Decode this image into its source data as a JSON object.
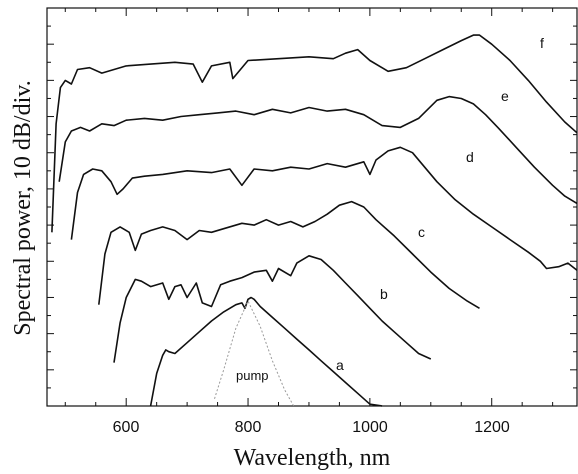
{
  "chart_data": {
    "type": "line",
    "title": "",
    "xlabel": "Wavelength, nm",
    "ylabel": "Spectral power, 10 dB/div.",
    "xlim": [
      470,
      1340
    ],
    "ylim": [
      0,
      11
    ],
    "x_ticks": [
      "600",
      "800",
      "1000",
      "1200"
    ],
    "grid": false,
    "series": [
      {
        "name": "a",
        "x": [
          640,
          650,
          660,
          665,
          670,
          680,
          700,
          720,
          740,
          760,
          780,
          790,
          795,
          800,
          805,
          810,
          820,
          840,
          860,
          880,
          900,
          920,
          940,
          960,
          980,
          1000,
          1020
        ],
        "y": [
          0,
          0.9,
          1.4,
          1.55,
          1.5,
          1.45,
          1.75,
          2.05,
          2.35,
          2.6,
          2.8,
          2.85,
          2.7,
          2.95,
          3.0,
          2.95,
          2.75,
          2.45,
          2.15,
          1.85,
          1.55,
          1.25,
          0.95,
          0.65,
          0.35,
          0.05,
          -0.3
        ]
      },
      {
        "name": "b",
        "x": [
          580,
          590,
          600,
          615,
          625,
          640,
          660,
          670,
          680,
          690,
          700,
          715,
          725,
          740,
          755,
          770,
          790,
          810,
          830,
          840,
          850,
          870,
          880,
          900,
          920,
          940,
          960,
          980,
          1000,
          1020,
          1040,
          1060,
          1080,
          1100
        ],
        "y": [
          1.2,
          2.3,
          3.0,
          3.5,
          3.45,
          3.3,
          3.4,
          2.95,
          3.3,
          3.35,
          3.0,
          3.4,
          2.85,
          2.75,
          3.35,
          3.45,
          3.55,
          3.7,
          3.75,
          3.45,
          3.8,
          3.6,
          3.95,
          4.15,
          4.05,
          3.75,
          3.4,
          3.05,
          2.7,
          2.35,
          2.05,
          1.75,
          1.45,
          1.3
        ]
      },
      {
        "name": "c",
        "x": [
          555,
          565,
          575,
          590,
          605,
          615,
          625,
          640,
          660,
          680,
          700,
          720,
          740,
          760,
          790,
          810,
          830,
          850,
          870,
          890,
          910,
          930,
          950,
          970,
          990,
          1010,
          1040,
          1070,
          1100,
          1130,
          1160,
          1180
        ],
        "y": [
          2.8,
          4.2,
          4.8,
          4.95,
          4.8,
          4.3,
          4.75,
          4.85,
          4.95,
          4.85,
          4.6,
          4.85,
          4.8,
          4.9,
          5.05,
          5.0,
          5.15,
          5.0,
          5.1,
          4.95,
          5.1,
          5.3,
          5.55,
          5.65,
          5.5,
          5.15,
          4.7,
          4.2,
          3.7,
          3.25,
          2.9,
          2.7
        ]
      },
      {
        "name": "d",
        "x": [
          510,
          520,
          530,
          545,
          560,
          575,
          585,
          595,
          610,
          630,
          660,
          700,
          740,
          770,
          790,
          810,
          840,
          870,
          900,
          930,
          960,
          990,
          1000,
          1010,
          1030,
          1050,
          1070,
          1090,
          1110,
          1140,
          1170,
          1200,
          1230,
          1260,
          1280,
          1290,
          1310,
          1325,
          1340
        ],
        "y": [
          4.6,
          5.9,
          6.4,
          6.55,
          6.5,
          6.2,
          5.85,
          6.0,
          6.3,
          6.35,
          6.4,
          6.5,
          6.45,
          6.55,
          6.1,
          6.55,
          6.5,
          6.6,
          6.55,
          6.7,
          6.6,
          6.75,
          6.4,
          6.8,
          7.05,
          7.15,
          7.0,
          6.6,
          6.2,
          5.7,
          5.3,
          4.95,
          4.6,
          4.25,
          4.0,
          3.8,
          3.85,
          3.95,
          3.75
        ]
      },
      {
        "name": "e",
        "x": [
          490,
          500,
          510,
          525,
          540,
          560,
          580,
          600,
          630,
          660,
          690,
          720,
          750,
          780,
          810,
          840,
          870,
          900,
          930,
          960,
          990,
          1020,
          1050,
          1080,
          1110,
          1130,
          1150,
          1170,
          1190,
          1210,
          1240,
          1270,
          1300,
          1320,
          1340
        ],
        "y": [
          6.2,
          7.3,
          7.6,
          7.7,
          7.6,
          7.8,
          7.75,
          7.9,
          7.95,
          7.9,
          8.0,
          8.05,
          8.1,
          8.15,
          8.05,
          8.2,
          8.1,
          8.25,
          8.15,
          8.2,
          8.05,
          7.75,
          7.7,
          7.95,
          8.45,
          8.55,
          8.5,
          8.35,
          8.05,
          7.7,
          7.15,
          6.6,
          6.1,
          5.8,
          5.6
        ]
      },
      {
        "name": "f",
        "x": [
          478,
          485,
          492,
          500,
          510,
          520,
          540,
          560,
          600,
          640,
          680,
          710,
          725,
          740,
          770,
          775,
          800,
          850,
          900,
          940,
          960,
          980,
          1000,
          1030,
          1060,
          1090,
          1120,
          1150,
          1170,
          1180,
          1200,
          1230,
          1260,
          1290,
          1320,
          1340
        ],
        "y": [
          4.8,
          7.8,
          8.8,
          9.0,
          8.9,
          9.3,
          9.35,
          9.2,
          9.4,
          9.45,
          9.5,
          9.45,
          8.95,
          9.4,
          9.5,
          9.05,
          9.55,
          9.6,
          9.65,
          9.6,
          9.75,
          9.85,
          9.55,
          9.25,
          9.35,
          9.6,
          9.85,
          10.1,
          10.25,
          10.25,
          10.0,
          9.55,
          9.0,
          8.4,
          7.85,
          7.55
        ]
      },
      {
        "name": "pump",
        "x": [
          745,
          760,
          780,
          800,
          820,
          840,
          860,
          875
        ],
        "y": [
          0.2,
          1.0,
          2.15,
          2.9,
          2.2,
          1.25,
          0.45,
          0.0
        ]
      }
    ]
  },
  "annotations": {
    "pump": "pump"
  },
  "colors": {
    "curve": "#111111",
    "pump": "#9a9a9a",
    "axis": "#111111"
  }
}
